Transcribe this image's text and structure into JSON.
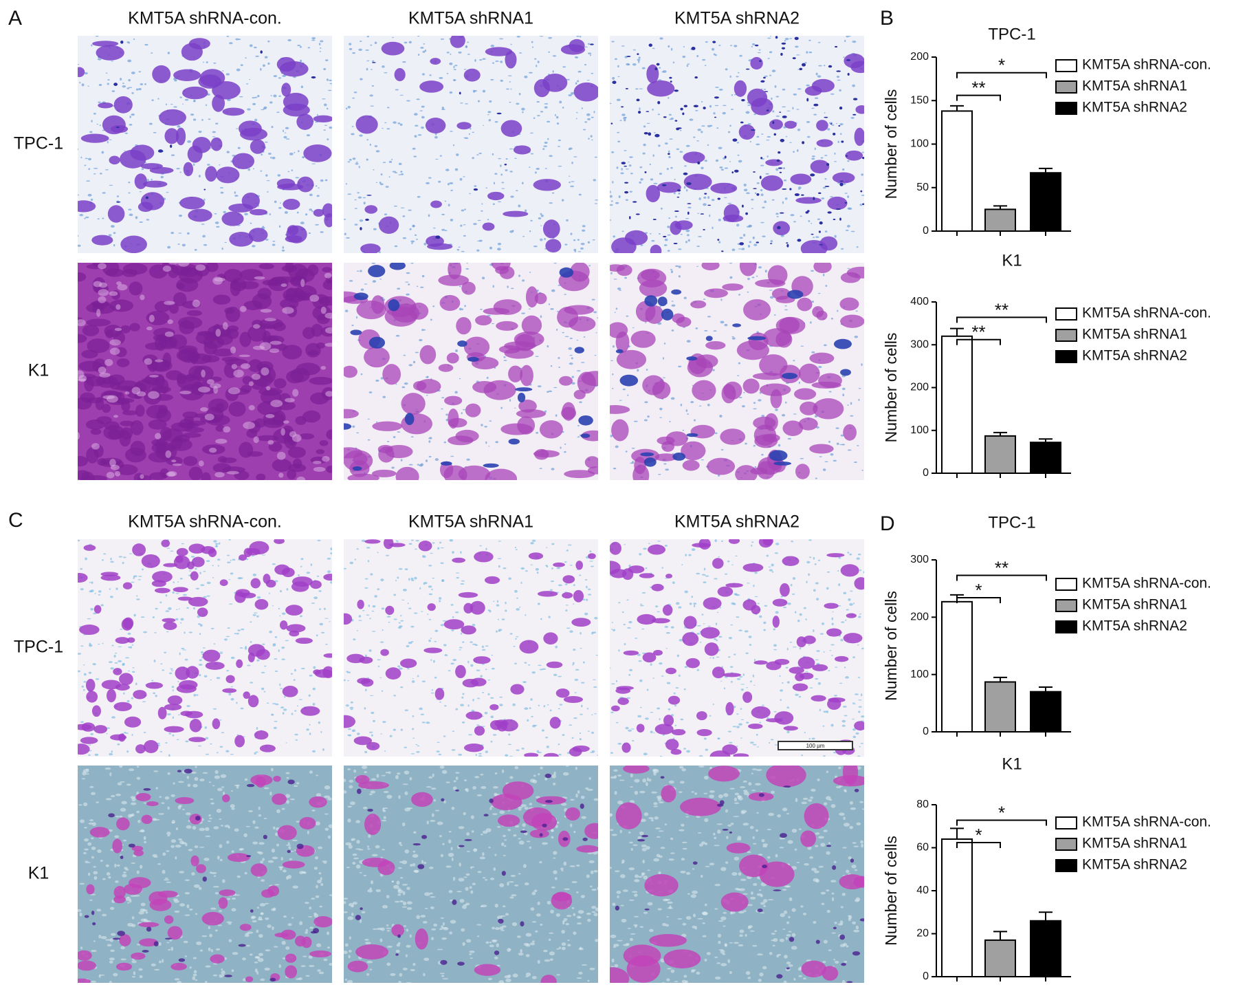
{
  "panels": {
    "A": {
      "letter": "A",
      "columns": [
        "KMT5A shRNA-con.",
        "KMT5A shRNA1",
        "KMT5A shRNA2"
      ],
      "rows": [
        "TPC-1",
        "K1"
      ]
    },
    "B": {
      "letter": "B"
    },
    "C": {
      "letter": "C",
      "columns": [
        "KMT5A shRNA-con.",
        "KMT5A shRNA1",
        "KMT5A shRNA2"
      ],
      "rows": [
        "TPC-1",
        "K1"
      ],
      "scale_bar": "100 µm"
    },
    "D": {
      "letter": "D"
    }
  },
  "chart_data": [
    {
      "type": "bar",
      "title": "TPC-1",
      "ylabel": "Number of cells",
      "ylim": [
        0,
        200
      ],
      "yticks": [
        0,
        50,
        100,
        150,
        200
      ],
      "series": [
        {
          "name": "KMT5A shRNA-con.",
          "color": "#ffffff",
          "values": [
            138
          ],
          "errors": [
            6
          ]
        },
        {
          "name": "KMT5A shRNA1",
          "color": "#a0a0a0",
          "values": [
            25
          ],
          "errors": [
            4
          ]
        },
        {
          "name": "KMT5A shRNA2",
          "color": "#000000",
          "values": [
            67
          ],
          "errors": [
            5
          ]
        }
      ],
      "annotations": [
        "**",
        "*"
      ]
    },
    {
      "type": "bar",
      "title": "K1",
      "ylabel": "Number of cells",
      "ylim": [
        0,
        400
      ],
      "yticks": [
        0,
        100,
        200,
        300,
        400
      ],
      "series": [
        {
          "name": "KMT5A shRNA-con.",
          "color": "#ffffff",
          "values": [
            320
          ],
          "errors": [
            18
          ]
        },
        {
          "name": "KMT5A shRNA1",
          "color": "#a0a0a0",
          "values": [
            87
          ],
          "errors": [
            8
          ]
        },
        {
          "name": "KMT5A shRNA2",
          "color": "#000000",
          "values": [
            72
          ],
          "errors": [
            8
          ]
        }
      ],
      "annotations": [
        "**",
        "**"
      ]
    },
    {
      "type": "bar",
      "title": "TPC-1",
      "ylabel": "Number of cells",
      "ylim": [
        0,
        300
      ],
      "yticks": [
        0,
        100,
        200,
        300
      ],
      "series": [
        {
          "name": "KMT5A shRNA-con.",
          "color": "#ffffff",
          "values": [
            227
          ],
          "errors": [
            12
          ]
        },
        {
          "name": "KMT5A shRNA1",
          "color": "#a0a0a0",
          "values": [
            87
          ],
          "errors": [
            8
          ]
        },
        {
          "name": "KMT5A shRNA2",
          "color": "#000000",
          "values": [
            70
          ],
          "errors": [
            8
          ]
        }
      ],
      "annotations": [
        "*",
        "**"
      ]
    },
    {
      "type": "bar",
      "title": "K1",
      "ylabel": "Number of cells",
      "ylim": [
        0,
        80
      ],
      "yticks": [
        0,
        20,
        40,
        60,
        80
      ],
      "series": [
        {
          "name": "KMT5A shRNA-con.",
          "color": "#ffffff",
          "values": [
            64
          ],
          "errors": [
            5
          ]
        },
        {
          "name": "KMT5A shRNA1",
          "color": "#a0a0a0",
          "values": [
            17
          ],
          "errors": [
            4
          ]
        },
        {
          "name": "KMT5A shRNA2",
          "color": "#000000",
          "values": [
            26
          ],
          "errors": [
            4
          ]
        }
      ],
      "annotations": [
        "*",
        "*"
      ]
    }
  ]
}
